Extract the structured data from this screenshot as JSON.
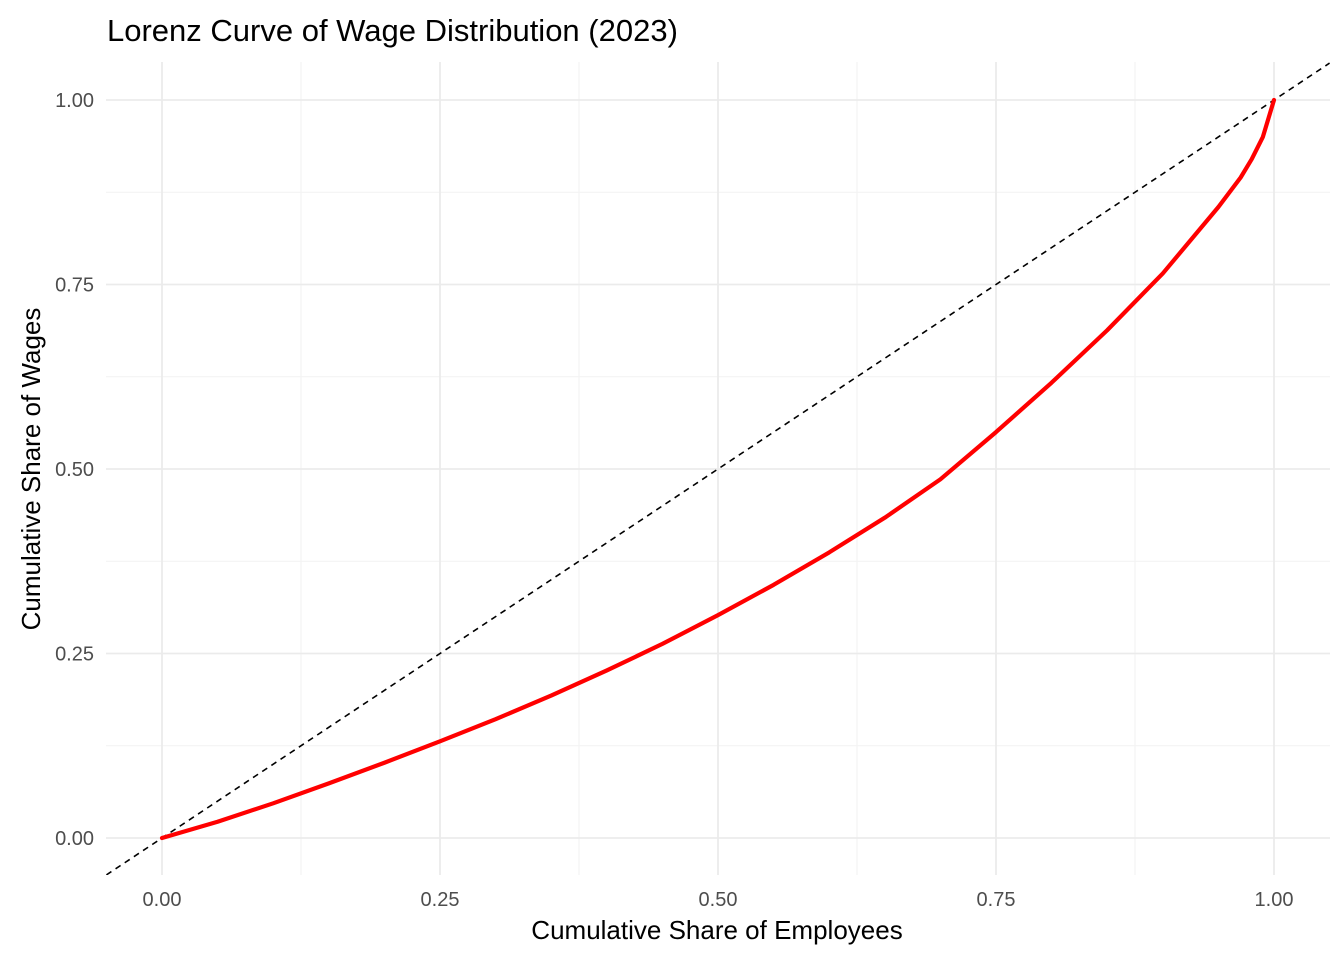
{
  "chart_data": {
    "type": "line",
    "title": "Lorenz Curve of Wage Distribution (2023)",
    "xlabel": "Cumulative Share of Employees",
    "ylabel": "Cumulative Share of Wages",
    "xlim": [
      -0.05,
      1.05
    ],
    "ylim": [
      -0.05,
      1.05
    ],
    "grid": true,
    "legend": "none",
    "x_ticks": [
      "0.00",
      "0.25",
      "0.50",
      "0.75",
      "1.00"
    ],
    "y_ticks": [
      "0.00",
      "0.25",
      "0.50",
      "0.75",
      "1.00"
    ],
    "series": [
      {
        "color": "#ff0000",
        "style": "solid",
        "x": [
          0,
          0.05,
          0.1,
          0.15,
          0.2,
          0.25,
          0.3,
          0.35,
          0.4,
          0.45,
          0.5,
          0.55,
          0.6,
          0.65,
          0.7,
          0.75,
          0.8,
          0.85,
          0.9,
          0.95,
          0.97,
          0.98,
          0.99,
          1.0
        ],
        "y": [
          0,
          0.022,
          0.047,
          0.074,
          0.102,
          0.131,
          0.161,
          0.193,
          0.227,
          0.263,
          0.302,
          0.343,
          0.387,
          0.434,
          0.486,
          0.55,
          0.617,
          0.688,
          0.765,
          0.855,
          0.895,
          0.92,
          0.95,
          1.0
        ]
      },
      {
        "color": "#000000",
        "style": "dashed",
        "x": [
          -0.05,
          1.05
        ],
        "y": [
          -0.05,
          1.05
        ]
      }
    ]
  }
}
